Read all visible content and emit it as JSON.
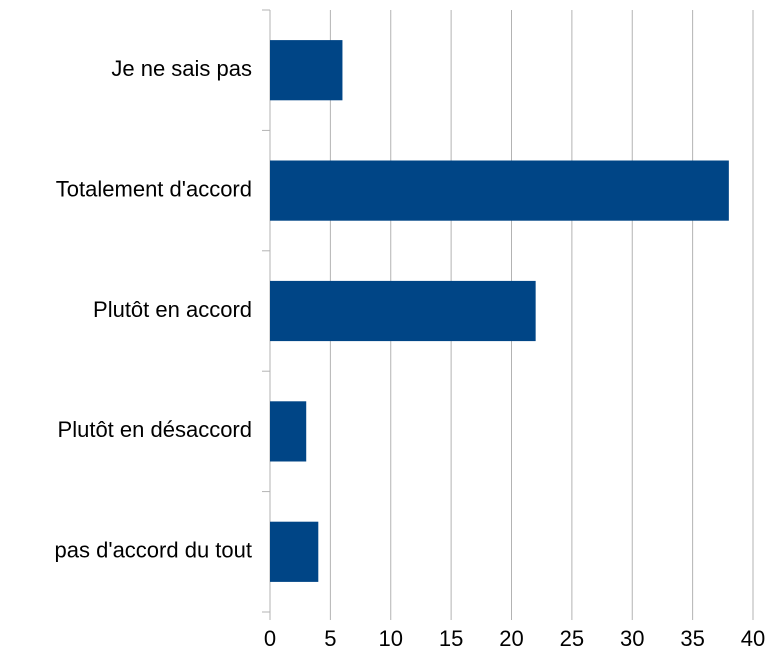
{
  "chart_data": {
    "type": "bar",
    "orientation": "horizontal",
    "categories": [
      "Je ne sais pas",
      "Totalement d'accord",
      "Plutôt en accord",
      "Plutôt en désaccord",
      "pas d'accord du tout"
    ],
    "values": [
      6,
      38,
      22,
      3,
      4
    ],
    "color": "#004586",
    "xlim": [
      0,
      40
    ],
    "xticks": [
      0,
      5,
      10,
      15,
      20,
      25,
      30,
      35,
      40
    ],
    "grid": true
  }
}
